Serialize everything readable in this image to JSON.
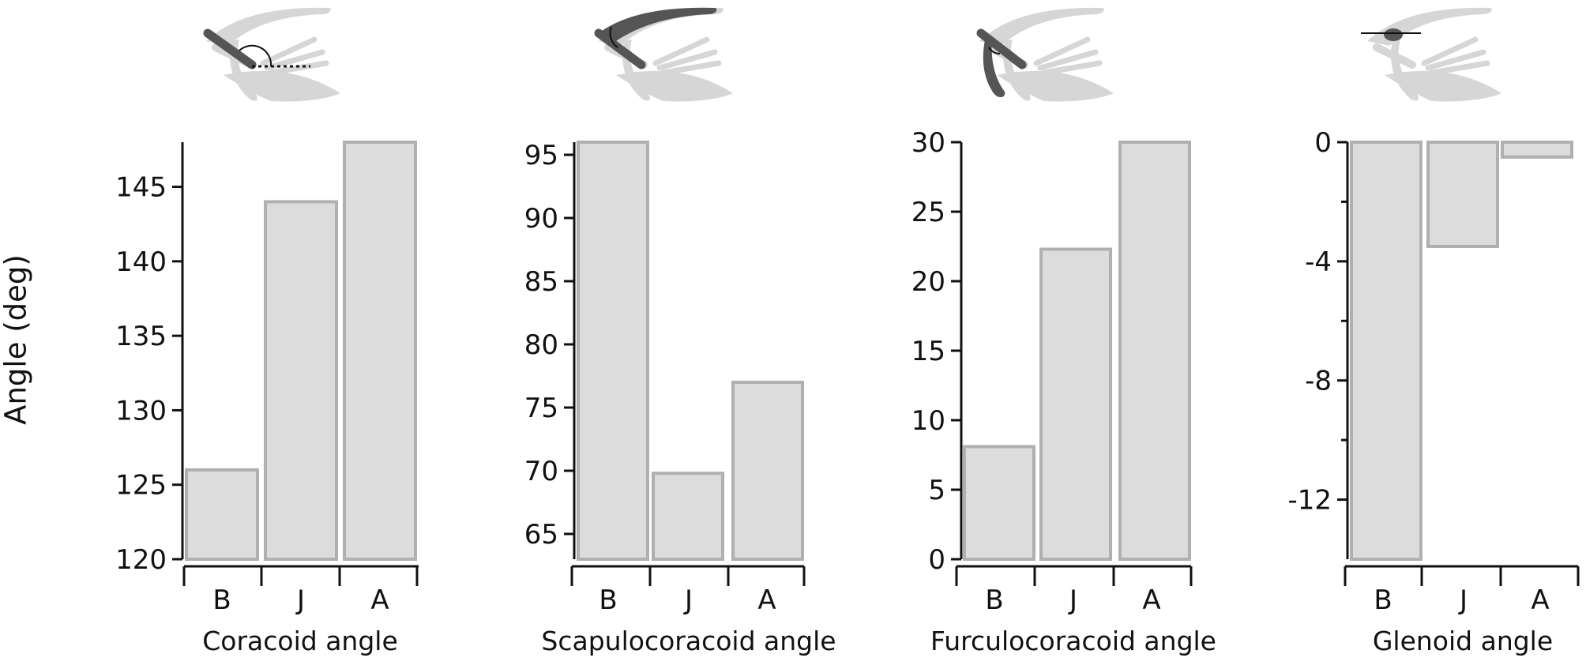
{
  "figure": {
    "ylabel": "Angle (deg)"
  },
  "colors": {
    "bar_fill": "#dcdcdc",
    "bar_stroke": "#b0b0b0",
    "axis": "#111111",
    "bone_light": "#d6d6d6",
    "bone_dark": "#555555"
  },
  "chart_data": [
    {
      "type": "bar",
      "categories": [
        "B",
        "J",
        "A"
      ],
      "values": [
        126,
        144,
        148
      ],
      "xlabel": "Coracoid angle",
      "ylabel": "Angle (deg)",
      "ylim": [
        120,
        148
      ],
      "yticks": [
        120,
        125,
        130,
        135,
        140,
        145
      ],
      "ytick_labels": [
        "120",
        "125",
        "130",
        "135",
        "140",
        "145"
      ],
      "icon": "coracoid-angle-icon"
    },
    {
      "type": "bar",
      "categories": [
        "B",
        "J",
        "A"
      ],
      "values": [
        96,
        69.8,
        77
      ],
      "xlabel": "Scapulocoracoid angle",
      "ylim": [
        63,
        96
      ],
      "yticks": [
        65,
        70,
        75,
        80,
        85,
        90,
        95
      ],
      "ytick_labels": [
        "65",
        "70",
        "75",
        "80",
        "85",
        "90",
        "95"
      ],
      "icon": "scapulocoracoid-angle-icon"
    },
    {
      "type": "bar",
      "categories": [
        "B",
        "J",
        "A"
      ],
      "values": [
        8.1,
        22.3,
        30
      ],
      "xlabel": "Furculocoracoid angle",
      "ylim": [
        0,
        30
      ],
      "yticks": [
        0,
        5,
        10,
        15,
        20,
        25,
        30
      ],
      "ytick_labels": [
        "0",
        "5",
        "10",
        "15",
        "20",
        "25",
        "30"
      ],
      "icon": "furculocoracoid-angle-icon"
    },
    {
      "type": "bar",
      "categories": [
        "B",
        "J",
        "A"
      ],
      "values": [
        -14,
        -3.5,
        -0.5
      ],
      "xlabel": "Glenoid angle",
      "ylim": [
        -14,
        0
      ],
      "yticks": [
        0,
        -4,
        -8,
        -12
      ],
      "ytick_labels": [
        "0",
        "-4",
        "-8",
        "-12"
      ],
      "yminor": [
        -2,
        -6,
        -10
      ],
      "icon": "glenoid-angle-icon"
    }
  ]
}
